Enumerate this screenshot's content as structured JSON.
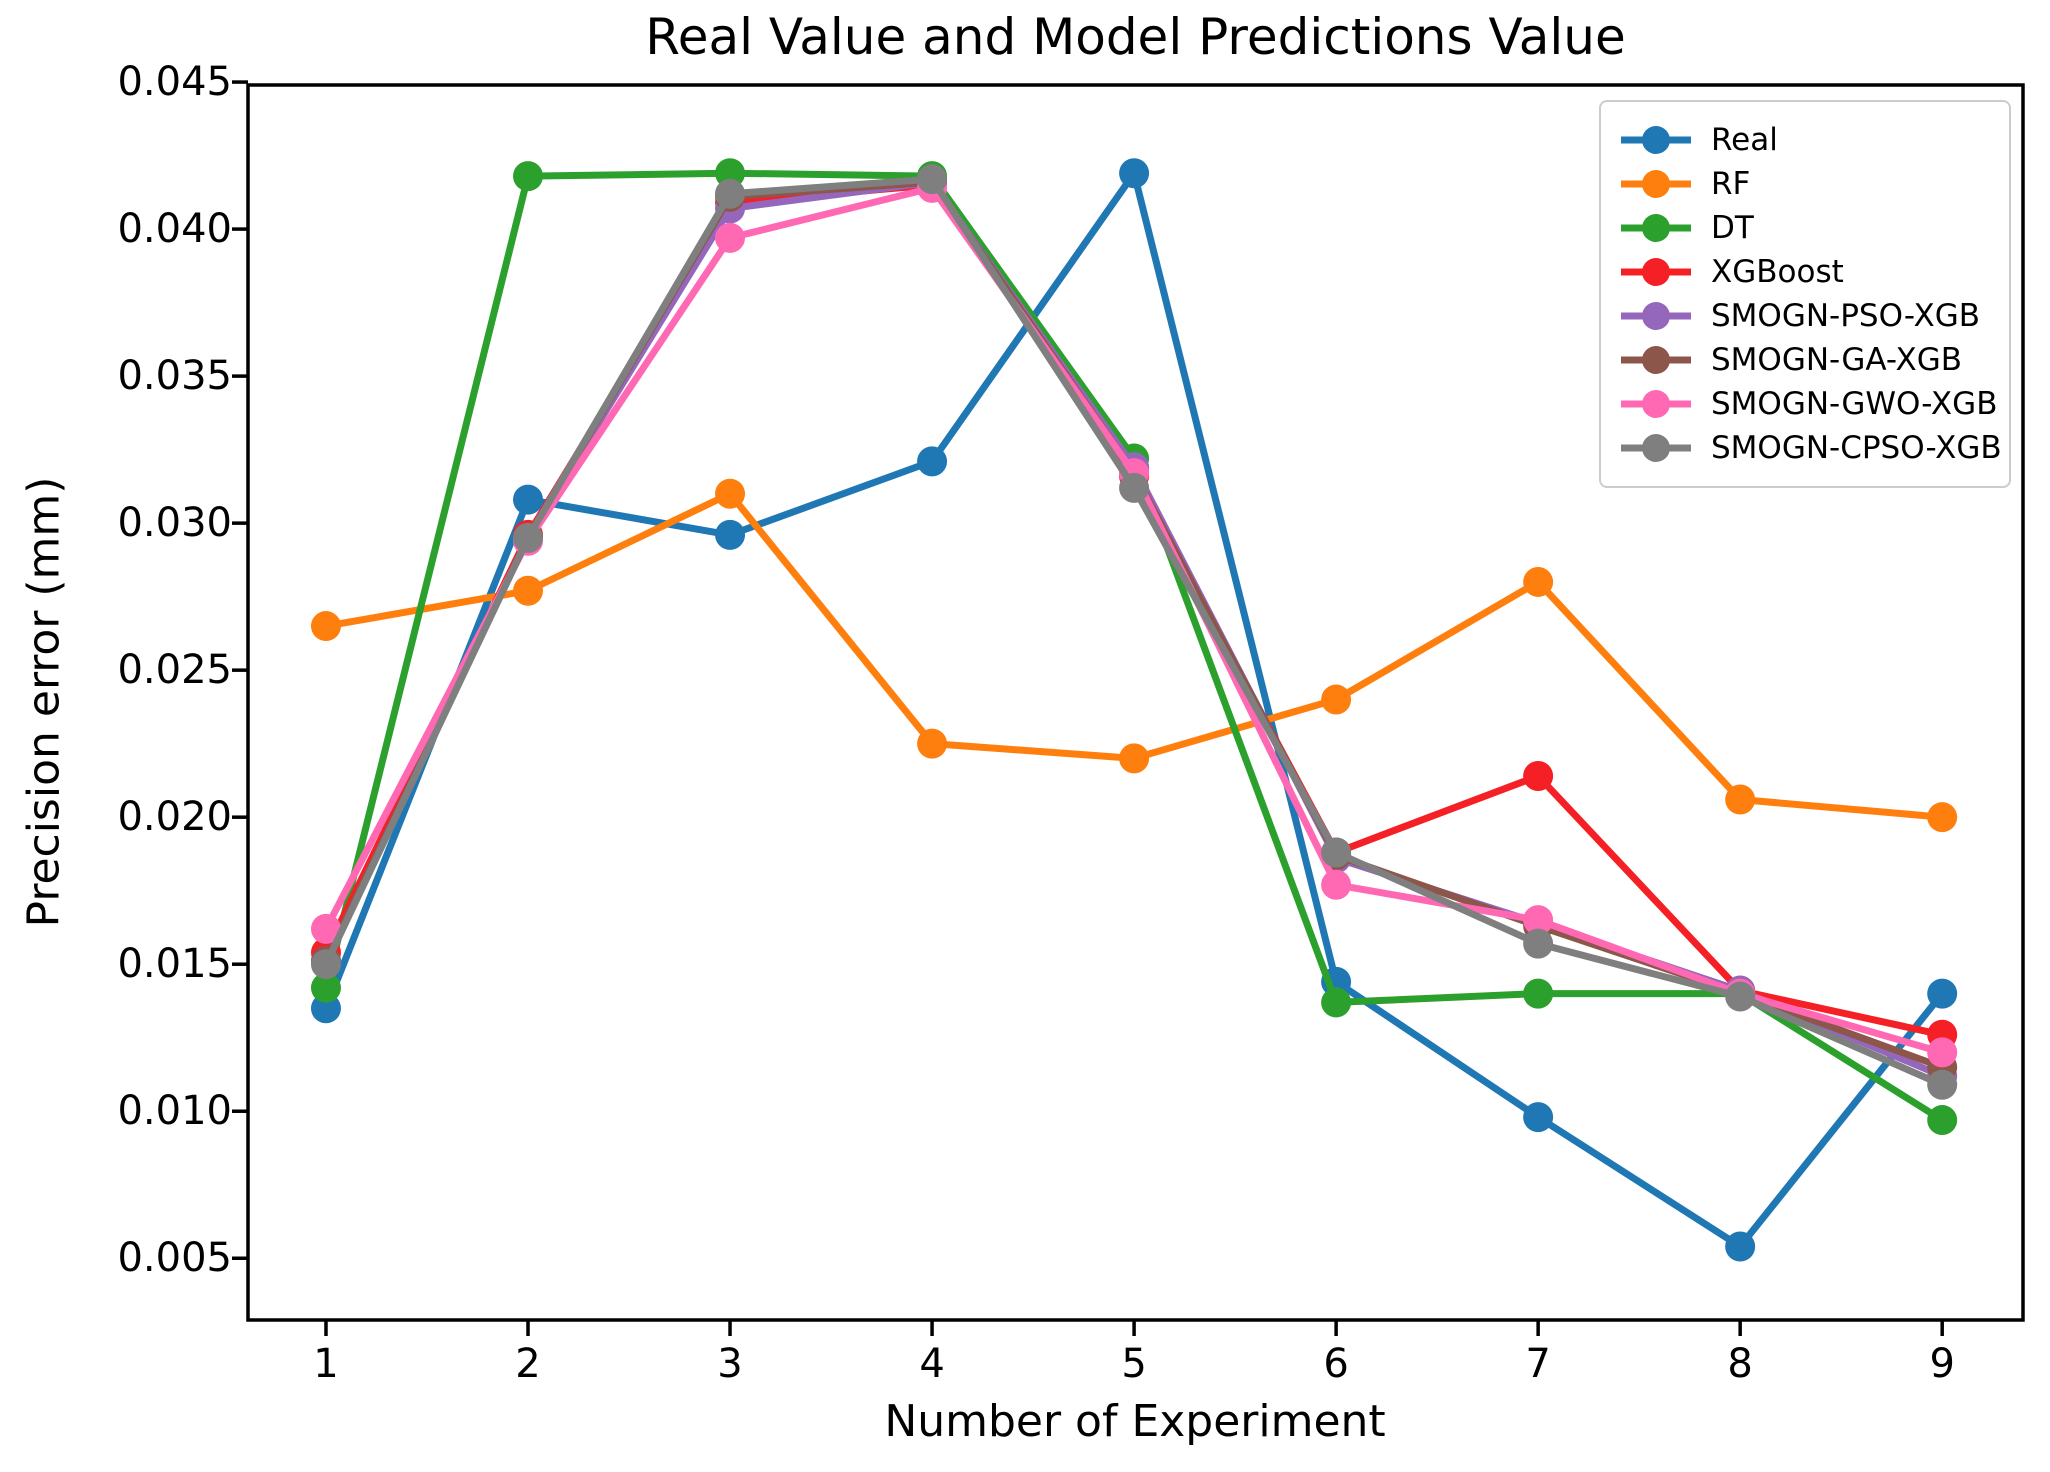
{
  "chart_data": {
    "type": "line",
    "title": "Real Value and Model Predictions Value",
    "xlabel": "Number of Experiment",
    "ylabel": "Precision error (mm)",
    "x": [
      1,
      2,
      3,
      4,
      5,
      6,
      7,
      8,
      9
    ],
    "x_tick_labels": [
      "1",
      "2",
      "3",
      "4",
      "5",
      "6",
      "7",
      "8",
      "9"
    ],
    "y_tick_values": [
      0.045,
      0.04,
      0.035,
      0.03,
      0.025,
      0.02,
      0.015,
      0.01,
      0.005
    ],
    "y_tick_labels": [
      "0.045",
      "0.040",
      "0.035",
      "0.030",
      "0.025",
      "0.020",
      "0.015",
      "0.010",
      "0.005"
    ],
    "xlim": [
      0.614,
      9.4
    ],
    "ylim": [
      0.0029,
      0.0449
    ],
    "grid": false,
    "legend_position": "upper right",
    "axis_color": "#000000",
    "legend_border_color": "#cccccc",
    "background_color": "#ffffff",
    "marker": "circle",
    "series": [
      {
        "name": "Real",
        "color": "#1f77b4",
        "values": [
          0.0135,
          0.0308,
          0.0296,
          0.0321,
          0.0419,
          0.0144,
          0.0098,
          0.0054,
          0.014
        ]
      },
      {
        "name": "RF",
        "color": "#ff7f0e",
        "values": [
          0.0265,
          0.0277,
          0.031,
          0.0225,
          0.022,
          0.024,
          0.028,
          0.0206,
          0.02
        ]
      },
      {
        "name": "DT",
        "color": "#2ca02c",
        "values": [
          0.0142,
          0.0418,
          0.0419,
          0.0418,
          0.0322,
          0.0137,
          0.014,
          0.014,
          0.0097
        ]
      },
      {
        "name": "XGBoost",
        "color": "#f42026",
        "values": [
          0.0154,
          0.0296,
          0.0409,
          0.0415,
          0.0316,
          0.0188,
          0.0214,
          0.0141,
          0.0126
        ]
      },
      {
        "name": "SMOGN-PSO-XGB",
        "color": "#9467bd",
        "values": [
          0.0151,
          0.0295,
          0.0407,
          0.0416,
          0.0319,
          0.0186,
          0.0164,
          0.0141,
          0.0112
        ]
      },
      {
        "name": "SMOGN-GA-XGB",
        "color": "#8c564b",
        "values": [
          0.0151,
          0.0295,
          0.0411,
          0.0416,
          0.0317,
          0.0187,
          0.0163,
          0.014,
          0.0115
        ]
      },
      {
        "name": "SMOGN-GWO-XGB",
        "color": "#ff69b4",
        "values": [
          0.0162,
          0.0294,
          0.0397,
          0.0414,
          0.0317,
          0.0177,
          0.0165,
          0.014,
          0.012
        ]
      },
      {
        "name": "SMOGN-CPSO-XGB",
        "color": "#7f7f7f",
        "values": [
          0.015,
          0.0295,
          0.0412,
          0.0417,
          0.0312,
          0.0188,
          0.0157,
          0.0139,
          0.0109
        ]
      }
    ]
  }
}
